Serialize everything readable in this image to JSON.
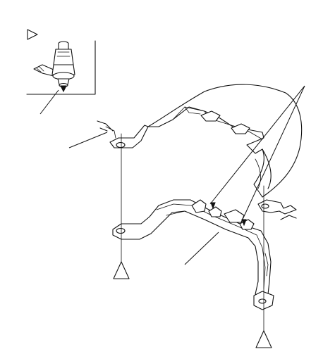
{
  "diagram": {
    "colors": {
      "line": "#111111",
      "background": "#ffffff"
    },
    "detail_inset": {
      "marker": "triangle-right-icon"
    },
    "fastener_symbol": "triangle-clip-icon",
    "callouts": [
      {
        "name": "clip-detail-leader"
      },
      {
        "name": "front-left-mount-leader"
      },
      {
        "name": "rear-clip-leader-upper"
      },
      {
        "name": "rear-clip-leader-lower"
      },
      {
        "name": "frame-bracket-leader"
      }
    ]
  }
}
